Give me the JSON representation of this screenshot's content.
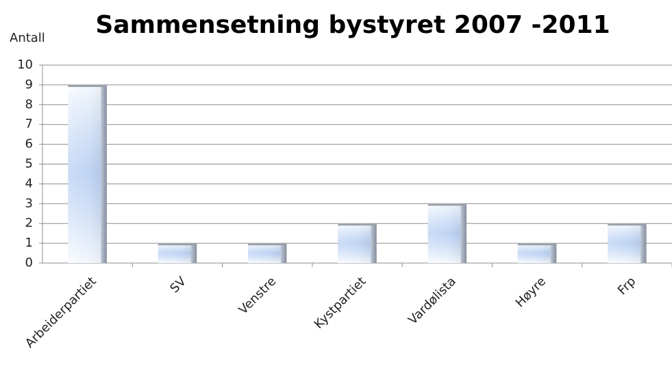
{
  "chart_data": {
    "type": "bar",
    "title": "Sammensetning bystyret 2007 -2011",
    "ylabel": "Antall",
    "categories": [
      "Arbeiderpartiet",
      "SV",
      "Venstre",
      "Kystpartiet",
      "Vardølista",
      "Høyre",
      "Frp"
    ],
    "values": [
      9,
      1,
      1,
      2,
      3,
      1,
      2
    ],
    "color": "#c6d9f5",
    "ylim": [
      0,
      10
    ],
    "yticks": [
      0,
      1,
      2,
      3,
      4,
      5,
      6,
      7,
      8,
      9,
      10
    ],
    "grid": true
  }
}
